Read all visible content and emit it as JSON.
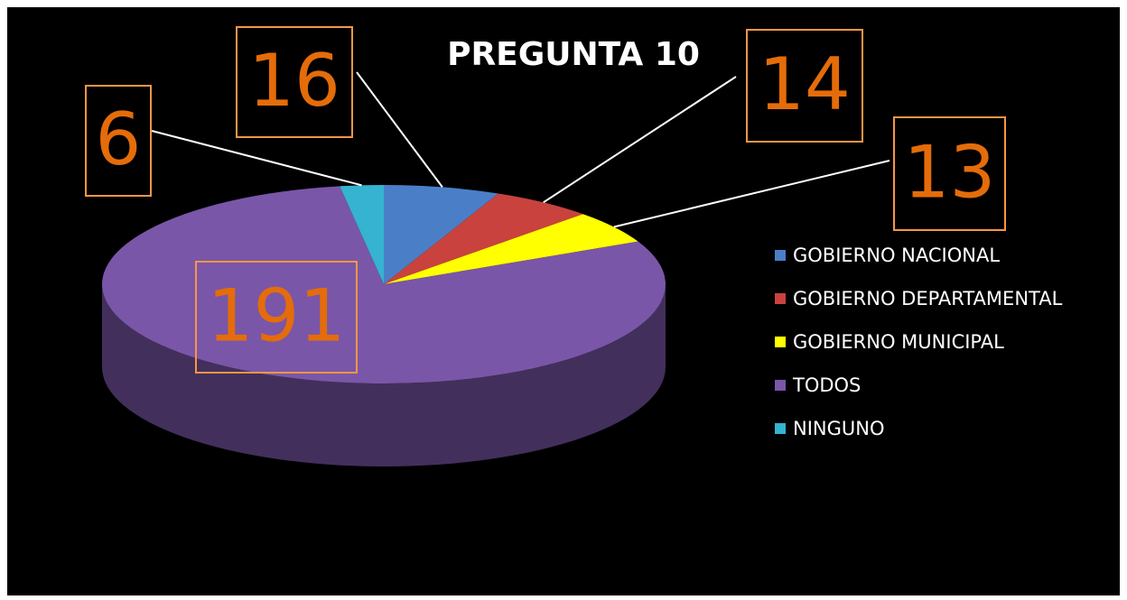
{
  "chart_data": {
    "type": "pie",
    "title": "PREGUNTA 10",
    "categories": [
      "GOBIERNO NACIONAL",
      "GOBIERNO DEPARTAMENTAL",
      "GOBIERNO MUNICIPAL",
      "TODOS",
      "NINGUNO"
    ],
    "values": [
      16,
      14,
      13,
      191,
      6
    ],
    "colors": [
      "#4a7fc8",
      "#c9423e",
      "#ffff00",
      "#7a56a8",
      "#35b3d0"
    ],
    "legend": "right"
  }
}
